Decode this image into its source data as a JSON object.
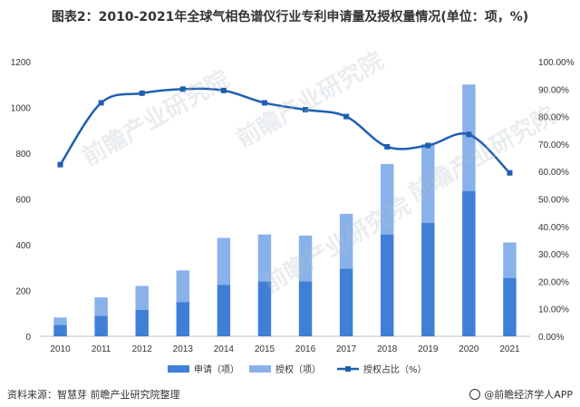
{
  "title": "图表2：2010-2021年全球气相色谱仪行业专利申请量及授权量情况(单位：项，%)",
  "chart_data": {
    "type": "bar",
    "categories": [
      "2010",
      "2011",
      "2012",
      "2013",
      "2014",
      "2015",
      "2016",
      "2017",
      "2018",
      "2019",
      "2020",
      "2021"
    ],
    "series": [
      {
        "name": "申请（项）",
        "type": "bar",
        "values": [
          50,
          90,
          115,
          150,
          225,
          240,
          240,
          295,
          445,
          495,
          635,
          255
        ],
        "color": "#3f7fd6"
      },
      {
        "name": "授权（项）",
        "type": "bar",
        "values": [
          32,
          80,
          105,
          138,
          205,
          205,
          200,
          240,
          308,
          345,
          465,
          155
        ],
        "color": "#89b2ea"
      },
      {
        "name": "授权占比（%）",
        "type": "line",
        "axis": "right",
        "values": [
          62.5,
          85,
          88.5,
          90,
          89.5,
          85,
          82.5,
          80,
          69,
          69.5,
          73.5,
          59.5
        ],
        "color": "#1f5fb0"
      }
    ],
    "stacked": true,
    "ylim": [
      0,
      1200
    ],
    "y_ticks": [
      "0",
      "200",
      "400",
      "600",
      "800",
      "1000",
      "1200"
    ],
    "y2lim": [
      0,
      100
    ],
    "y2_ticks": [
      "0.00%",
      "10.00%",
      "20.00%",
      "30.00%",
      "40.00%",
      "50.00%",
      "60.00%",
      "70.00%",
      "80.00%",
      "90.00%",
      "100.00%"
    ],
    "legend_position": "bottom",
    "grid": false
  },
  "footer": {
    "source": "资料来源：智慧芽 前瞻产业研究院整理",
    "brand": "@前瞻经济学人APP"
  },
  "watermark": "前瞻产业研究院"
}
